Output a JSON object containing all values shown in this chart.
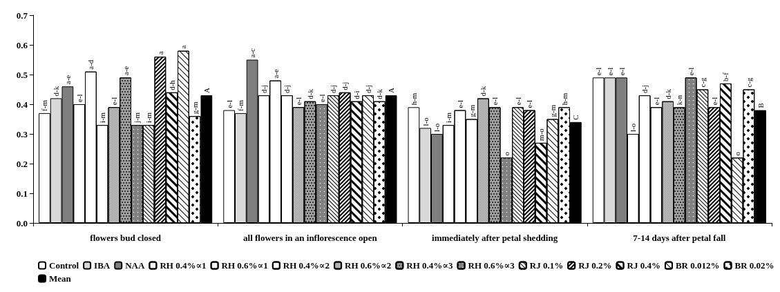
{
  "chart_data": {
    "type": "bar",
    "categories": [
      "flowers bud closed",
      "all flowers in an inflorescence open",
      "immediately after petal shedding",
      "7-14 days after petal fall"
    ],
    "ylim": [
      0,
      0.7
    ],
    "yticks": [
      {
        "value": 0,
        "label": "0.0"
      },
      0.1,
      0.2,
      0.3,
      0.4,
      0.5,
      0.6,
      0.7
    ],
    "grid": false,
    "legend": "bottom",
    "series": [
      {
        "name": "Control",
        "color": "#ffffff",
        "values": [
          0.37,
          0.38,
          0.39,
          0.49
        ],
        "value_labels": [
          "f-m",
          "e-l",
          "h-m",
          "e-l"
        ]
      },
      {
        "name": "IBA",
        "color": "#d9d9d9",
        "values": [
          0.42,
          0.37,
          0.32,
          0.49
        ],
        "value_labels": [
          "d-k",
          "f-m",
          "l-o",
          "e-l"
        ]
      },
      {
        "name": "NAA",
        "color": "#7f7f7f",
        "values": [
          0.46,
          0.55,
          0.3,
          0.49
        ],
        "value_labels": [
          "a-e",
          "a-c",
          "l-o",
          "e-l"
        ]
      },
      {
        "name": "RH 0.4%∝1",
        "color": "#ffffff",
        "values": [
          0.4,
          0.43,
          0.33,
          0.3
        ],
        "value_labels": [
          "e-l",
          "d-j",
          "i-m",
          "l-o"
        ]
      },
      {
        "name": "RH 0.6%∝1",
        "color": "#ffffff",
        "values": [
          0.51,
          0.48,
          0.38,
          0.43
        ],
        "value_labels": [
          "a-d",
          "a-e",
          "e-l",
          "d-j"
        ]
      },
      {
        "name": "RH 0.4%∝2",
        "color": "#ffffff",
        "values": [
          0.33,
          0.43,
          0.35,
          0.39
        ],
        "value_labels": [
          "i-m",
          "d-j",
          "g-m",
          "e-l"
        ]
      },
      {
        "name": "RH 0.6%∝2",
        "color": "#d0d0d0",
        "values": [
          0.39,
          0.39,
          0.42,
          0.41
        ],
        "value_labels": [
          "e-l",
          "e-l",
          "d-k",
          "d-k"
        ]
      },
      {
        "name": "RH 0.4%∝3",
        "color": "#a0a0a0",
        "values": [
          0.49,
          0.41,
          0.39,
          0.39
        ],
        "value_labels": [
          "a-e",
          "d-k",
          "e-l",
          "k-n"
        ]
      },
      {
        "name": "RH 0.6%∝3",
        "color": "#808080",
        "values": [
          0.33,
          0.4,
          0.22,
          0.49
        ],
        "value_labels": [
          "j-m",
          "e-l",
          "o",
          "e-l"
        ]
      },
      {
        "name": "RJ 0.1%",
        "color": "#ffffff",
        "values": [
          0.33,
          0.43,
          0.39,
          0.45
        ],
        "value_labels": [
          "i-m",
          "d-j",
          "e-l",
          "c-g"
        ]
      },
      {
        "name": "RJ 0.2%",
        "color": "#ffffff",
        "values": [
          0.56,
          0.44,
          0.38,
          0.39
        ],
        "value_labels": [
          "a",
          "d-j",
          "e-l",
          "e-l"
        ]
      },
      {
        "name": "RJ 0.4%",
        "color": "#ffffff",
        "values": [
          0.44,
          0.41,
          0.27,
          0.47
        ],
        "value_labels": [
          "d-h",
          "d-i",
          "m-o",
          "b-f"
        ]
      },
      {
        "name": "BR 0.012%",
        "color": "#ffffff",
        "values": [
          0.58,
          0.43,
          0.35,
          0.22
        ],
        "value_labels": [
          "a",
          "d-j",
          "g-m",
          "o"
        ]
      },
      {
        "name": "BR 0.02%",
        "color": "#ffffff",
        "values": [
          0.36,
          0.41,
          0.39,
          0.45
        ],
        "value_labels": [
          "g-m",
          "d-k",
          "h-m",
          "c-g"
        ]
      },
      {
        "name": "Mean",
        "color": "#000000",
        "values": [
          0.43,
          0.43,
          0.34,
          0.38
        ],
        "value_labels": [
          "A",
          "A",
          "C",
          "B"
        ]
      }
    ]
  }
}
